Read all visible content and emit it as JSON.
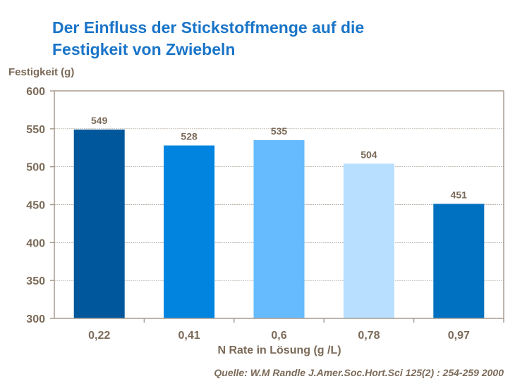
{
  "title_line1": "Der Einfluss der Stickstoffmenge auf die",
  "title_line2": "Festigkeit von Zwiebeln",
  "source": "Quelle: W.M Randle  J.Amer.Soc.Hort.Sci 125(2) : 254-259 2000",
  "chart_data": {
    "type": "bar",
    "categories": [
      "0,22",
      "0,41",
      "0,6",
      "0,78",
      "0,97"
    ],
    "values": [
      549,
      528,
      535,
      504,
      451
    ],
    "data_labels": [
      "549",
      "528",
      "535",
      "504",
      "451"
    ],
    "colors": [
      "#00579B",
      "#0084E0",
      "#66BBFF",
      "#B8DFFF",
      "#0070C0"
    ],
    "xlabel": "N Rate in Lösung (g /L)",
    "ylabel": "Festigkeit (g)",
    "ylim": [
      300,
      600
    ],
    "yticks": [
      300,
      350,
      400,
      450,
      500,
      550,
      600
    ],
    "grid": true,
    "legend": "none"
  }
}
